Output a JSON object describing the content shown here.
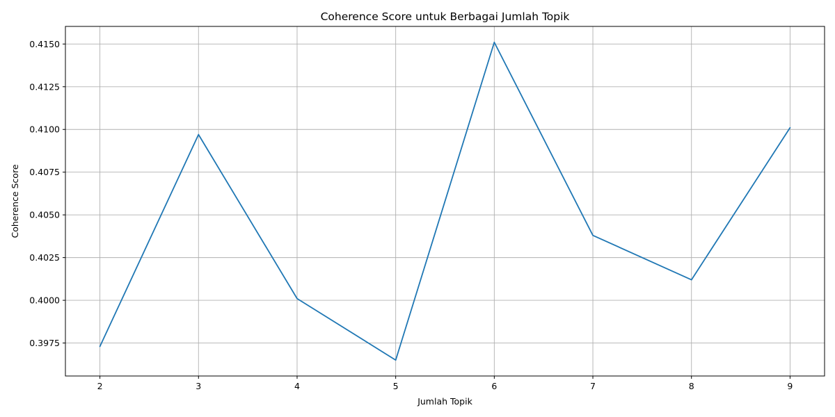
{
  "chart_data": {
    "type": "line",
    "title": "Coherence Score untuk Berbagai Jumlah Topik",
    "xlabel": "Jumlah Topik",
    "ylabel": "Coherence Score",
    "x": [
      2,
      3,
      4,
      5,
      6,
      7,
      8,
      9
    ],
    "x_tick_labels": [
      "2",
      "3",
      "4",
      "5",
      "6",
      "7",
      "8",
      "9"
    ],
    "series": [
      {
        "values": [
          0.3973,
          0.4097,
          0.4001,
          0.3965,
          0.4151,
          0.4038,
          0.4012,
          0.4101
        ],
        "color": "#1f77b4"
      }
    ],
    "y_ticks": [
      0.3975,
      0.4,
      0.4025,
      0.405,
      0.4075,
      0.41,
      0.4125,
      0.415
    ],
    "y_tick_labels": [
      "0.3975",
      "0.4000",
      "0.4025",
      "0.4050",
      "0.4075",
      "0.4100",
      "0.4125",
      "0.4150"
    ],
    "xlim": [
      1.65,
      9.35
    ],
    "ylim": [
      0.39557,
      0.41603
    ],
    "grid": true
  }
}
